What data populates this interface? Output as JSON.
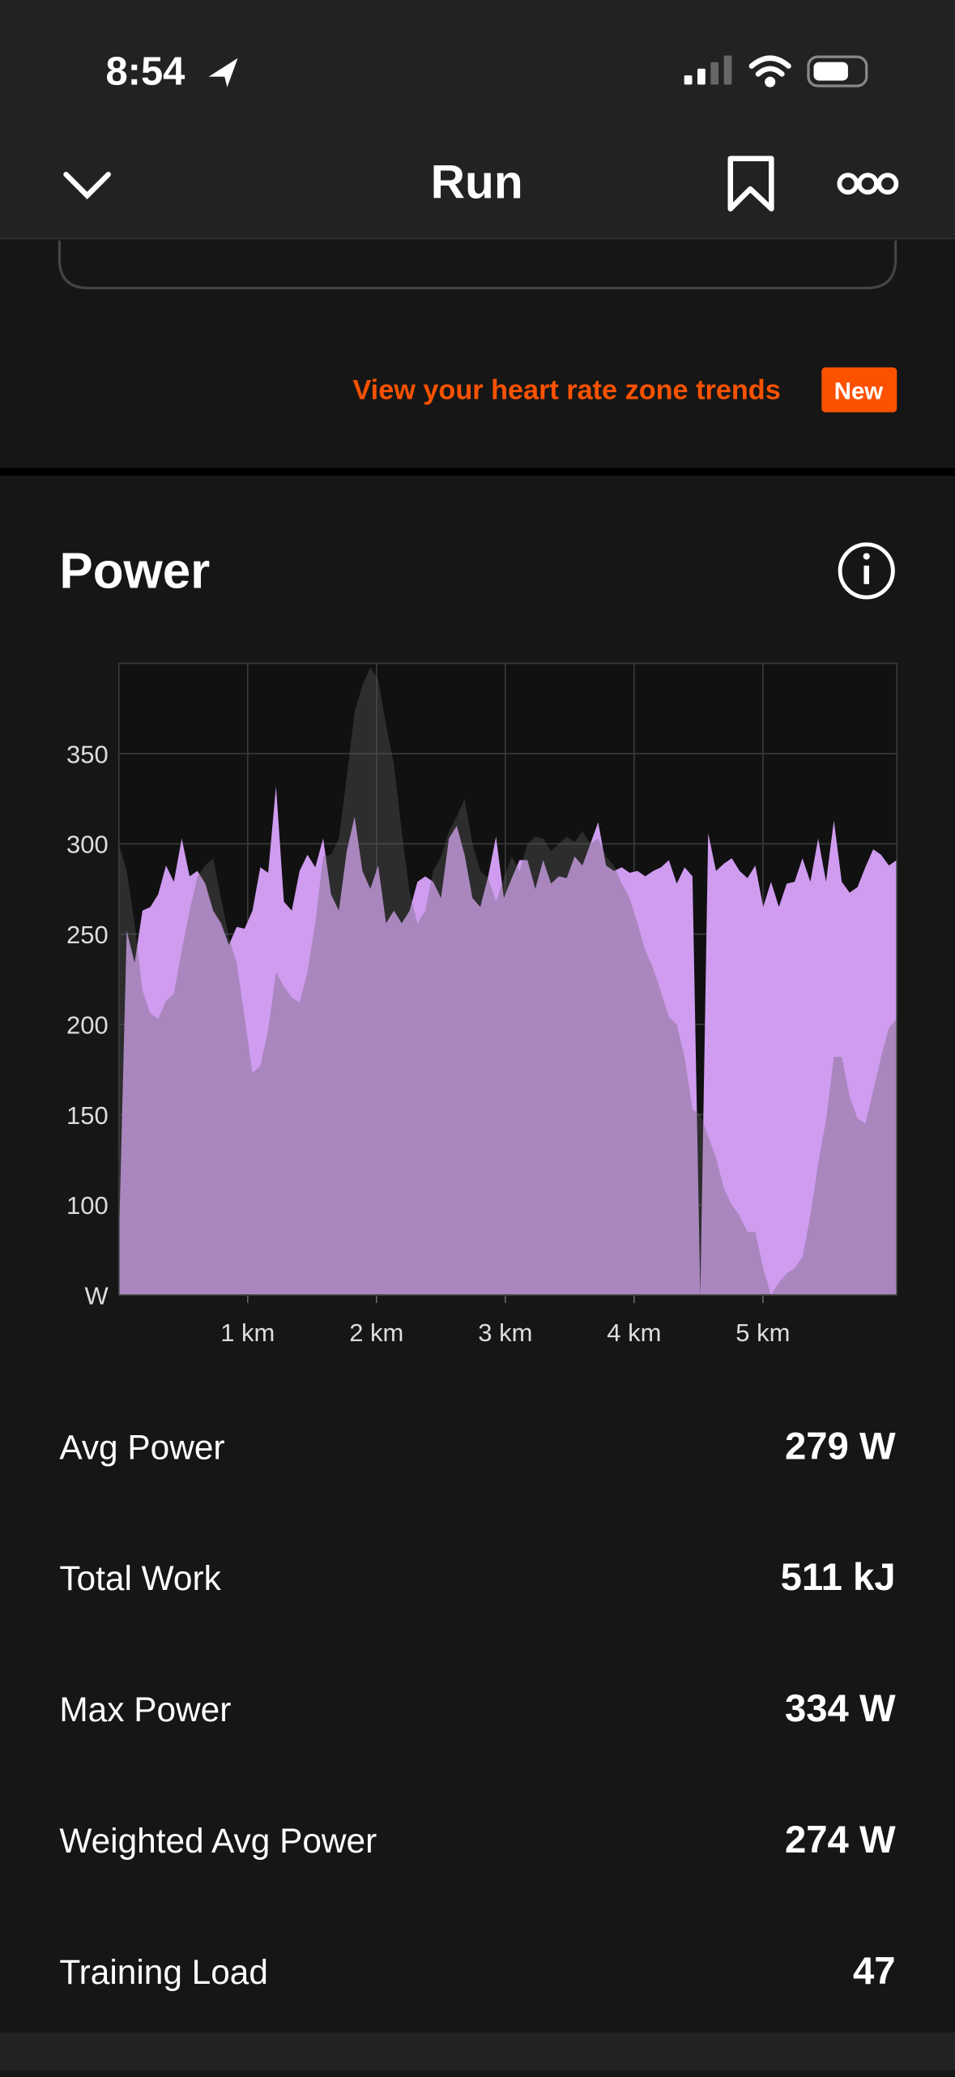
{
  "status_bar": {
    "time": "8:54"
  },
  "header": {
    "title": "Run"
  },
  "banner": {
    "text": "View your heart rate zone trends",
    "badge": "New"
  },
  "section": {
    "title": "Power"
  },
  "chart_data": {
    "type": "area",
    "x": [
      0,
      0.061,
      0.122,
      0.183,
      0.244,
      0.305,
      0.366,
      0.427,
      0.488,
      0.549,
      0.61,
      0.671,
      0.732,
      0.793,
      0.854,
      0.915,
      0.976,
      1.037,
      1.098,
      1.159,
      1.22,
      1.281,
      1.342,
      1.403,
      1.464,
      1.525,
      1.586,
      1.647,
      1.708,
      1.769,
      1.83,
      1.891,
      1.952,
      2.013,
      2.074,
      2.135,
      2.196,
      2.257,
      2.318,
      2.379,
      2.44,
      2.501,
      2.562,
      2.623,
      2.684,
      2.745,
      2.806,
      2.867,
      2.928,
      2.989,
      3.05,
      3.111,
      3.172,
      3.233,
      3.294,
      3.355,
      3.416,
      3.477,
      3.538,
      3.599,
      3.66,
      3.721,
      3.782,
      3.843,
      3.904,
      3.965,
      4.026,
      4.087,
      4.148,
      4.209,
      4.27,
      4.331,
      4.392,
      4.453,
      4.514,
      4.575,
      4.636,
      4.697,
      4.758,
      4.819,
      4.88,
      4.941,
      5.002,
      5.063,
      5.124,
      5.185,
      5.246,
      5.307,
      5.368,
      5.429,
      5.49,
      5.551,
      5.612,
      5.673,
      5.734,
      5.795,
      5.856,
      5.917,
      5.978,
      6.039
    ],
    "series": [
      {
        "color": "#cf9cf0",
        "values": [
          79,
          252,
          234,
          263,
          265,
          272,
          288,
          279,
          303,
          282,
          285,
          278,
          263,
          256,
          244,
          254,
          253,
          263,
          287,
          284,
          332,
          268,
          263,
          285,
          294,
          287,
          303,
          272,
          263,
          296,
          315,
          285,
          275,
          288,
          256,
          263,
          256,
          263,
          279,
          282,
          279,
          270,
          303,
          310,
          294,
          270,
          265,
          282,
          304,
          270,
          281,
          291,
          291,
          275,
          291,
          278,
          282,
          281,
          293,
          288,
          300,
          312,
          288,
          285,
          287,
          284,
          285,
          282,
          285,
          287,
          291,
          278,
          287,
          282,
          50,
          306,
          285,
          289,
          292,
          285,
          281,
          288,
          265,
          279,
          265,
          278,
          279,
          292,
          279,
          303,
          279,
          313,
          279,
          273,
          276,
          287,
          297,
          294,
          288,
          291
        ]
      },
      {
        "color": "#606060",
        "values": [
          300,
          285,
          256,
          219,
          206,
          203,
          213,
          217,
          241,
          263,
          282,
          288,
          292,
          270,
          248,
          234,
          204,
          173,
          177,
          197,
          229,
          221,
          215,
          212,
          229,
          256,
          293,
          294,
          303,
          337,
          373,
          388,
          398,
          391,
          366,
          344,
          307,
          273,
          256,
          263,
          285,
          293,
          307,
          315,
          325,
          300,
          285,
          281,
          268,
          281,
          293,
          285,
          300,
          304,
          303,
          296,
          300,
          304,
          301,
          307,
          300,
          303,
          293,
          288,
          278,
          270,
          256,
          241,
          231,
          218,
          204,
          200,
          182,
          153,
          150,
          138,
          126,
          109,
          100,
          94,
          85,
          85,
          65,
          50,
          57,
          62,
          65,
          71,
          94,
          123,
          147,
          182,
          182,
          160,
          148,
          145,
          163,
          182,
          198,
          203
        ]
      }
    ],
    "xlim": [
      0,
      6.04
    ],
    "xticks": [
      {
        "value": 1,
        "label": "1 km"
      },
      {
        "value": 2,
        "label": "2 km"
      },
      {
        "value": 3,
        "label": "3 km"
      },
      {
        "value": 4,
        "label": "4 km"
      },
      {
        "value": 5,
        "label": "5 km"
      }
    ],
    "ylim": [
      50,
      400
    ],
    "yticks": [
      {
        "value": 50,
        "label": "W"
      },
      100,
      150,
      200,
      250,
      300,
      350
    ],
    "grid": true
  },
  "stats": [
    {
      "label": "Avg Power",
      "value": "279 W"
    },
    {
      "label": "Total Work",
      "value": "511 kJ"
    },
    {
      "label": "Max Power",
      "value": "334 W"
    },
    {
      "label": "Weighted Avg Power",
      "value": "274 W"
    },
    {
      "label": "Training Load",
      "value": "47"
    }
  ]
}
